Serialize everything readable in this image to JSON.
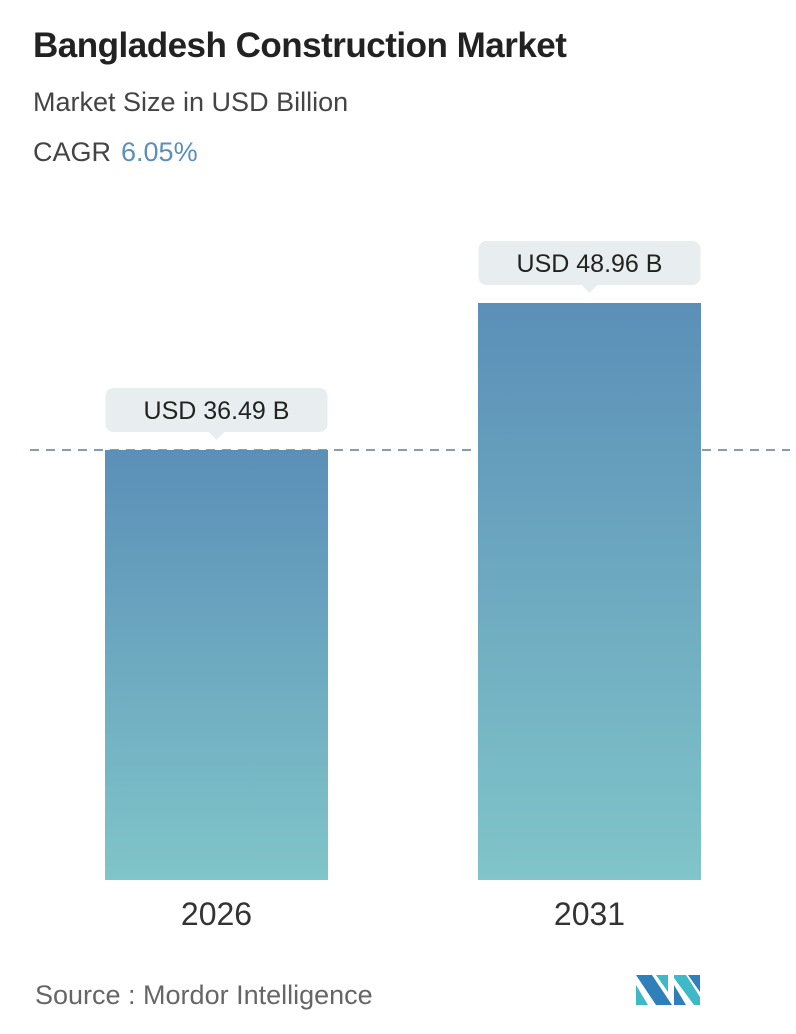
{
  "title": "Bangladesh Construction Market",
  "subtitle": "Market Size in USD Billion",
  "cagr": {
    "label": "CAGR",
    "value": "6.05%"
  },
  "source": "Source :  Mordor Intelligence",
  "colors": {
    "bar_top": "#5b8fb8",
    "bar_bottom": "#80c5c9",
    "label_bg": "#e8eef0",
    "accent": "#5b8fb8"
  },
  "chart_data": {
    "type": "bar",
    "categories": [
      "2026",
      "2031"
    ],
    "values": [
      36.49,
      48.96
    ],
    "data_labels": [
      "USD 36.49 B",
      "USD 48.96 B"
    ],
    "reference_line": 36.49,
    "ylim": [
      0,
      48.96
    ],
    "grid": false
  }
}
